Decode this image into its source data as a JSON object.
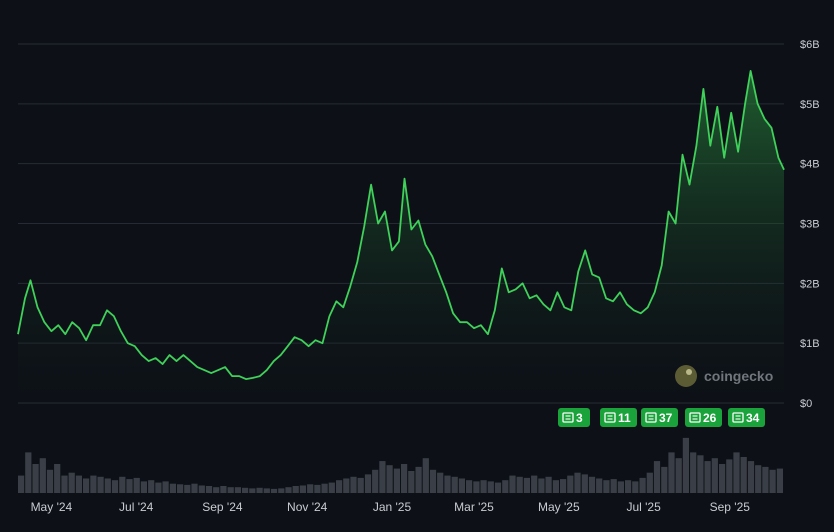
{
  "chart_data": {
    "type": "area",
    "title": "",
    "xlabel": "",
    "ylabel": "",
    "y_unit": "USD",
    "ylim": [
      0,
      6000000000
    ],
    "y_ticks": [
      {
        "value": 0,
        "label": "$0"
      },
      {
        "value": 1000000000,
        "label": "$1B"
      },
      {
        "value": 2000000000,
        "label": "$2B"
      },
      {
        "value": 3000000000,
        "label": "$3B"
      },
      {
        "value": 4000000000,
        "label": "$4B"
      },
      {
        "value": 5000000000,
        "label": "$5B"
      },
      {
        "value": 6000000000,
        "label": "$6B"
      }
    ],
    "x_ticks": [
      {
        "date": "2024-05-01",
        "label": "May '24"
      },
      {
        "date": "2024-07-01",
        "label": "Jul '24"
      },
      {
        "date": "2024-09-01",
        "label": "Sep '24"
      },
      {
        "date": "2024-11-01",
        "label": "Nov '24"
      },
      {
        "date": "2025-01-01",
        "label": "Jan '25"
      },
      {
        "date": "2025-03-01",
        "label": "Mar '25"
      },
      {
        "date": "2025-05-01",
        "label": "May '25"
      },
      {
        "date": "2025-07-01",
        "label": "Jul '25"
      },
      {
        "date": "2025-09-01",
        "label": "Sep '25"
      }
    ],
    "xlim": [
      "2024-04-07",
      "2025-10-10"
    ],
    "grid": true,
    "line_color": "#3fd15a",
    "series": [
      {
        "values_unit": "USD billions",
        "points": [
          [
            "2024-04-07",
            1.15
          ],
          [
            "2024-04-12",
            1.75
          ],
          [
            "2024-04-16",
            2.05
          ],
          [
            "2024-04-21",
            1.6
          ],
          [
            "2024-04-26",
            1.35
          ],
          [
            "2024-05-01",
            1.2
          ],
          [
            "2024-05-06",
            1.3
          ],
          [
            "2024-05-11",
            1.15
          ],
          [
            "2024-05-16",
            1.35
          ],
          [
            "2024-05-21",
            1.25
          ],
          [
            "2024-05-26",
            1.05
          ],
          [
            "2024-05-31",
            1.3
          ],
          [
            "2024-06-05",
            1.3
          ],
          [
            "2024-06-10",
            1.55
          ],
          [
            "2024-06-15",
            1.45
          ],
          [
            "2024-06-20",
            1.2
          ],
          [
            "2024-06-25",
            1.0
          ],
          [
            "2024-06-30",
            0.95
          ],
          [
            "2024-07-05",
            0.8
          ],
          [
            "2024-07-10",
            0.7
          ],
          [
            "2024-07-15",
            0.75
          ],
          [
            "2024-07-20",
            0.65
          ],
          [
            "2024-07-25",
            0.8
          ],
          [
            "2024-07-30",
            0.7
          ],
          [
            "2024-08-04",
            0.8
          ],
          [
            "2024-08-09",
            0.7
          ],
          [
            "2024-08-14",
            0.6
          ],
          [
            "2024-08-19",
            0.55
          ],
          [
            "2024-08-24",
            0.5
          ],
          [
            "2024-08-29",
            0.55
          ],
          [
            "2024-09-03",
            0.6
          ],
          [
            "2024-09-08",
            0.45
          ],
          [
            "2024-09-13",
            0.45
          ],
          [
            "2024-09-18",
            0.4
          ],
          [
            "2024-09-23",
            0.42
          ],
          [
            "2024-09-28",
            0.45
          ],
          [
            "2024-10-03",
            0.55
          ],
          [
            "2024-10-08",
            0.7
          ],
          [
            "2024-10-13",
            0.8
          ],
          [
            "2024-10-18",
            0.95
          ],
          [
            "2024-10-23",
            1.1
          ],
          [
            "2024-10-28",
            1.05
          ],
          [
            "2024-11-02",
            0.95
          ],
          [
            "2024-11-07",
            1.05
          ],
          [
            "2024-11-12",
            1.0
          ],
          [
            "2024-11-17",
            1.45
          ],
          [
            "2024-11-22",
            1.7
          ],
          [
            "2024-11-27",
            1.6
          ],
          [
            "2024-12-02",
            1.95
          ],
          [
            "2024-12-07",
            2.35
          ],
          [
            "2024-12-12",
            2.95
          ],
          [
            "2024-12-17",
            3.65
          ],
          [
            "2024-12-22",
            3.0
          ],
          [
            "2024-12-27",
            3.2
          ],
          [
            "2025-01-01",
            2.55
          ],
          [
            "2025-01-06",
            2.7
          ],
          [
            "2025-01-10",
            3.75
          ],
          [
            "2025-01-15",
            2.9
          ],
          [
            "2025-01-20",
            3.05
          ],
          [
            "2025-01-25",
            2.65
          ],
          [
            "2025-01-30",
            2.45
          ],
          [
            "2025-02-04",
            2.15
          ],
          [
            "2025-02-09",
            1.85
          ],
          [
            "2025-02-14",
            1.5
          ],
          [
            "2025-02-19",
            1.35
          ],
          [
            "2025-02-24",
            1.35
          ],
          [
            "2025-03-01",
            1.25
          ],
          [
            "2025-03-06",
            1.3
          ],
          [
            "2025-03-11",
            1.15
          ],
          [
            "2025-03-16",
            1.55
          ],
          [
            "2025-03-21",
            2.25
          ],
          [
            "2025-03-26",
            1.85
          ],
          [
            "2025-03-31",
            1.9
          ],
          [
            "2025-04-05",
            2.0
          ],
          [
            "2025-04-10",
            1.75
          ],
          [
            "2025-04-15",
            1.8
          ],
          [
            "2025-04-20",
            1.65
          ],
          [
            "2025-04-25",
            1.55
          ],
          [
            "2025-04-30",
            1.85
          ],
          [
            "2025-05-05",
            1.6
          ],
          [
            "2025-05-10",
            1.55
          ],
          [
            "2025-05-15",
            2.2
          ],
          [
            "2025-05-20",
            2.55
          ],
          [
            "2025-05-25",
            2.15
          ],
          [
            "2025-05-30",
            2.1
          ],
          [
            "2025-06-04",
            1.75
          ],
          [
            "2025-06-09",
            1.7
          ],
          [
            "2025-06-14",
            1.85
          ],
          [
            "2025-06-19",
            1.65
          ],
          [
            "2025-06-24",
            1.55
          ],
          [
            "2025-06-29",
            1.5
          ],
          [
            "2025-07-04",
            1.6
          ],
          [
            "2025-07-09",
            1.85
          ],
          [
            "2025-07-14",
            2.3
          ],
          [
            "2025-07-19",
            3.2
          ],
          [
            "2025-07-24",
            3.0
          ],
          [
            "2025-07-29",
            4.15
          ],
          [
            "2025-08-03",
            3.65
          ],
          [
            "2025-08-08",
            4.3
          ],
          [
            "2025-08-13",
            5.25
          ],
          [
            "2025-08-18",
            4.3
          ],
          [
            "2025-08-23",
            4.95
          ],
          [
            "2025-08-28",
            4.1
          ],
          [
            "2025-09-02",
            4.85
          ],
          [
            "2025-09-07",
            4.2
          ],
          [
            "2025-09-12",
            5.0
          ],
          [
            "2025-09-16",
            5.55
          ],
          [
            "2025-09-21",
            5.0
          ],
          [
            "2025-09-26",
            4.75
          ],
          [
            "2025-10-01",
            4.6
          ],
          [
            "2025-10-06",
            4.1
          ],
          [
            "2025-10-10",
            3.9
          ]
        ]
      }
    ],
    "volume_heights": [
      0.3,
      0.7,
      0.5,
      0.6,
      0.4,
      0.5,
      0.3,
      0.35,
      0.3,
      0.25,
      0.3,
      0.28,
      0.25,
      0.22,
      0.28,
      0.24,
      0.26,
      0.2,
      0.22,
      0.18,
      0.2,
      0.16,
      0.15,
      0.14,
      0.16,
      0.13,
      0.12,
      0.1,
      0.12,
      0.1,
      0.1,
      0.09,
      0.08,
      0.09,
      0.08,
      0.07,
      0.08,
      0.1,
      0.12,
      0.13,
      0.15,
      0.14,
      0.16,
      0.18,
      0.22,
      0.25,
      0.28,
      0.26,
      0.32,
      0.4,
      0.55,
      0.48,
      0.42,
      0.5,
      0.38,
      0.45,
      0.6,
      0.4,
      0.35,
      0.3,
      0.28,
      0.25,
      0.22,
      0.2,
      0.22,
      0.2,
      0.18,
      0.22,
      0.3,
      0.28,
      0.26,
      0.3,
      0.25,
      0.28,
      0.22,
      0.24,
      0.3,
      0.35,
      0.32,
      0.28,
      0.25,
      0.22,
      0.24,
      0.2,
      0.22,
      0.2,
      0.26,
      0.35,
      0.55,
      0.45,
      0.7,
      0.6,
      0.95,
      0.7,
      0.65,
      0.55,
      0.6,
      0.5,
      0.58,
      0.7,
      0.62,
      0.55,
      0.48,
      0.45,
      0.4,
      0.42
    ],
    "news_badges": [
      {
        "count": "3"
      },
      {
        "count": "11"
      },
      {
        "count": "37"
      },
      {
        "count": "26"
      },
      {
        "count": "34"
      }
    ],
    "watermark": {
      "text": "coingecko"
    }
  }
}
